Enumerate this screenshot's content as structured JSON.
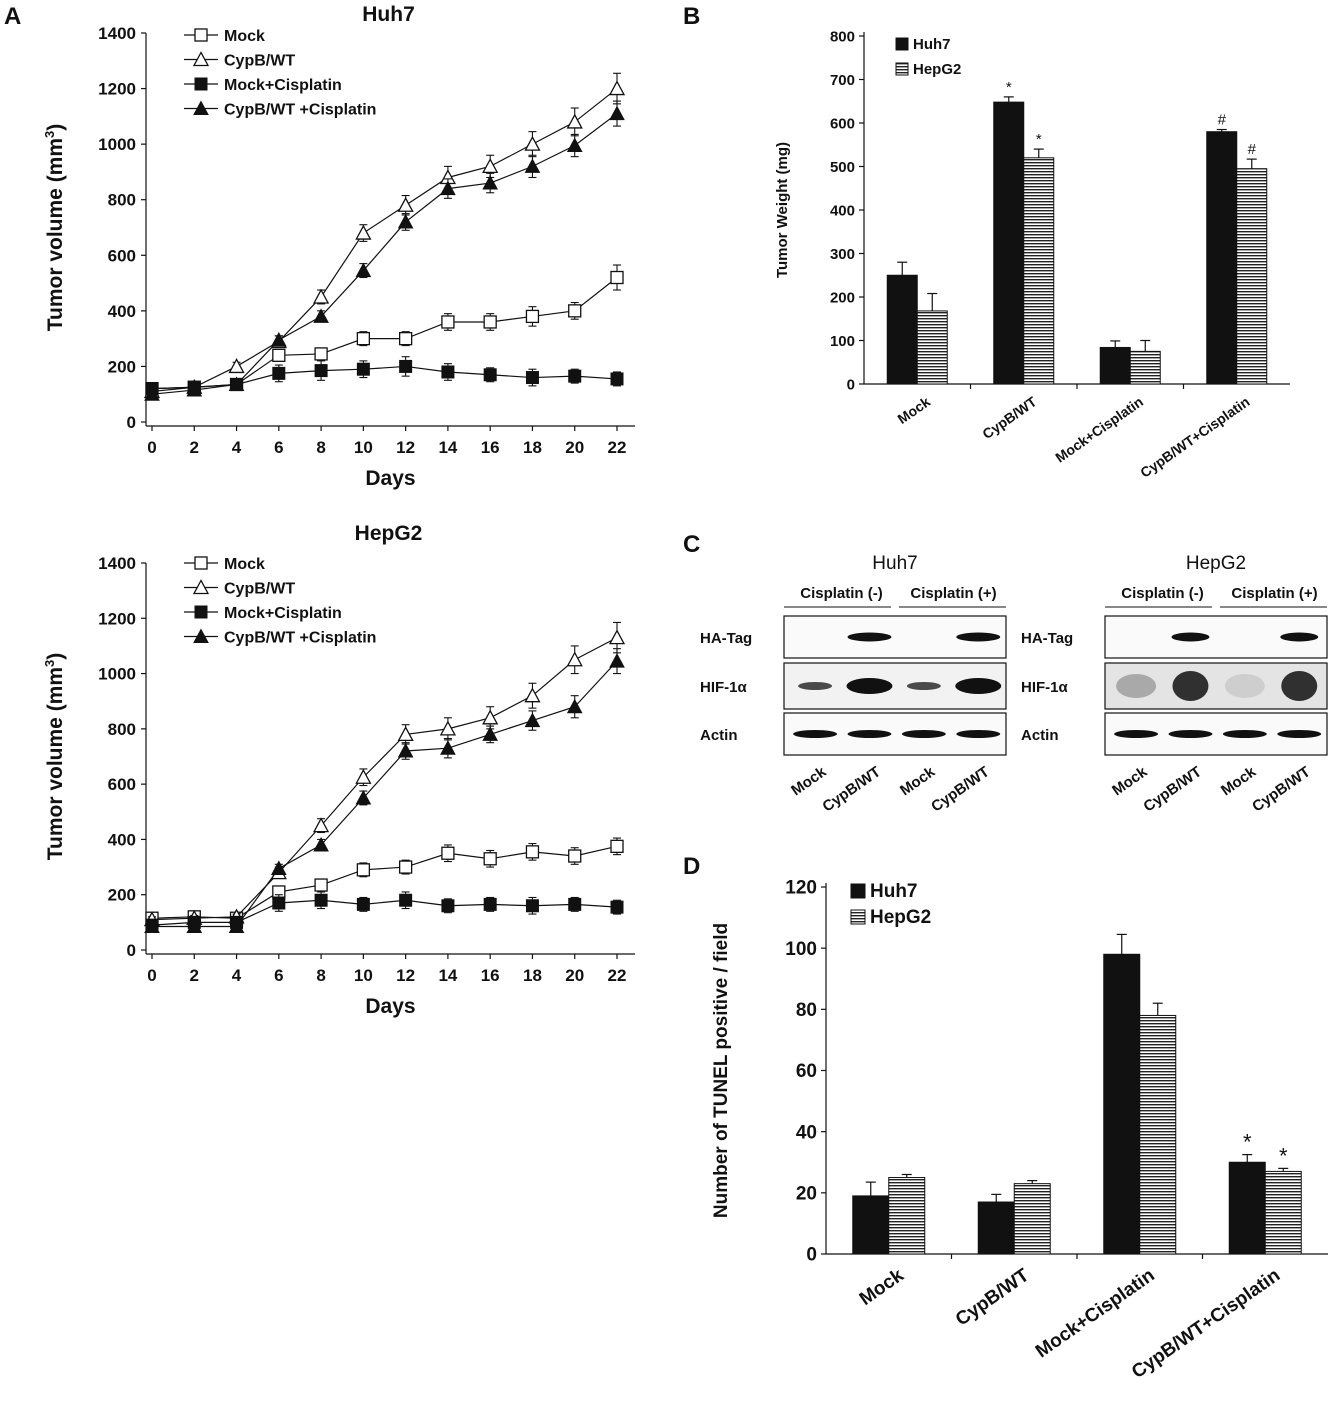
{
  "panels": {
    "A": "A",
    "B": "B",
    "C": "C",
    "D": "D"
  },
  "chart_data": [
    {
      "id": "A1",
      "type": "line",
      "title": "Huh7",
      "xlabel": "Days",
      "ylabel": "Tumor volume (mm",
      "ylabel_sup": "3",
      "ylabel_close": ")",
      "x": [
        0,
        2,
        4,
        6,
        8,
        10,
        12,
        14,
        16,
        18,
        20,
        22
      ],
      "xlim": [
        0,
        22
      ],
      "ylim": [
        0,
        1400
      ],
      "xticks": [
        0,
        2,
        4,
        6,
        8,
        10,
        12,
        14,
        16,
        18,
        20,
        22
      ],
      "yticks": [
        0,
        200,
        400,
        600,
        800,
        1000,
        1200,
        1400
      ],
      "series": [
        {
          "name": "Mock",
          "marker": "open-square",
          "values": [
            120,
            125,
            135,
            240,
            245,
            300,
            300,
            360,
            360,
            380,
            400,
            520
          ],
          "err": [
            15,
            10,
            10,
            20,
            20,
            25,
            25,
            30,
            30,
            35,
            30,
            45
          ]
        },
        {
          "name": "CypB/WT",
          "marker": "open-triangle",
          "values": [
            110,
            125,
            200,
            290,
            450,
            680,
            780,
            880,
            920,
            1000,
            1080,
            1200
          ],
          "err": [
            10,
            10,
            15,
            20,
            25,
            30,
            35,
            40,
            40,
            45,
            50,
            55
          ]
        },
        {
          "name": "Mock+Cisplatin",
          "marker": "filled-square",
          "values": [
            120,
            125,
            135,
            175,
            185,
            190,
            200,
            180,
            170,
            160,
            165,
            155
          ],
          "err": [
            15,
            10,
            10,
            30,
            35,
            30,
            35,
            30,
            25,
            30,
            25,
            25
          ]
        },
        {
          "name": "CypB/WT +Cisplatin",
          "marker": "filled-triangle",
          "values": [
            100,
            115,
            135,
            295,
            380,
            545,
            720,
            840,
            860,
            920,
            995,
            1110
          ],
          "err": [
            10,
            10,
            10,
            15,
            20,
            25,
            30,
            35,
            35,
            40,
            40,
            45
          ]
        }
      ]
    },
    {
      "id": "A2",
      "type": "line",
      "title": "HepG2",
      "xlabel": "Days",
      "ylabel": "Tumor volume (mm",
      "ylabel_sup": "3",
      "ylabel_close": ")",
      "x": [
        0,
        2,
        4,
        6,
        8,
        10,
        12,
        14,
        16,
        18,
        20,
        22
      ],
      "xlim": [
        0,
        22
      ],
      "ylim": [
        0,
        1400
      ],
      "xticks": [
        0,
        2,
        4,
        6,
        8,
        10,
        12,
        14,
        16,
        18,
        20,
        22
      ],
      "yticks": [
        0,
        200,
        400,
        600,
        800,
        1000,
        1200,
        1400
      ],
      "series": [
        {
          "name": "Mock",
          "marker": "open-square",
          "values": [
            115,
            120,
            115,
            210,
            235,
            290,
            300,
            350,
            330,
            355,
            340,
            375
          ],
          "err": [
            15,
            10,
            10,
            20,
            20,
            25,
            25,
            30,
            30,
            30,
            30,
            30
          ]
        },
        {
          "name": "CypB/WT",
          "marker": "open-triangle",
          "values": [
            110,
            115,
            120,
            280,
            450,
            625,
            780,
            800,
            840,
            920,
            1050,
            1130
          ],
          "err": [
            10,
            10,
            10,
            20,
            25,
            30,
            35,
            40,
            40,
            45,
            50,
            55
          ]
        },
        {
          "name": "Mock+Cisplatin",
          "marker": "filled-square",
          "values": [
            90,
            100,
            100,
            170,
            180,
            165,
            180,
            160,
            165,
            160,
            165,
            155
          ],
          "err": [
            10,
            10,
            10,
            30,
            30,
            25,
            30,
            25,
            25,
            30,
            25,
            25
          ]
        },
        {
          "name": "CypB/WT +Cisplatin",
          "marker": "filled-triangle",
          "values": [
            85,
            85,
            85,
            295,
            380,
            550,
            720,
            730,
            780,
            830,
            880,
            1045
          ],
          "err": [
            10,
            10,
            10,
            15,
            20,
            25,
            30,
            35,
            30,
            35,
            40,
            45
          ]
        }
      ]
    },
    {
      "id": "B",
      "type": "bar",
      "ylabel": "Tumor Weight (mg)",
      "categories": [
        "Mock",
        "CypB/WT",
        "Mock+Cisplatin",
        "CypB/WT+Cisplatin"
      ],
      "ylim": [
        0,
        800
      ],
      "yticks": [
        0,
        100,
        200,
        300,
        400,
        500,
        600,
        700,
        800
      ],
      "series": [
        {
          "name": "Huh7",
          "style": "solid",
          "values": [
            250,
            648,
            84,
            580
          ],
          "err": [
            30,
            12,
            15,
            5
          ],
          "marks": [
            "",
            "*",
            "",
            "#"
          ]
        },
        {
          "name": "HepG2",
          "style": "hatched",
          "values": [
            168,
            520,
            75,
            495
          ],
          "err": [
            40,
            20,
            25,
            22
          ],
          "marks": [
            "",
            "*",
            "",
            "#"
          ]
        }
      ]
    },
    {
      "id": "D",
      "type": "bar",
      "ylabel": "Number of TUNEL positive / field",
      "categories": [
        "Mock",
        "CypB/WT",
        "Mock+Cisplatin",
        "CypB/WT+Cisplatin"
      ],
      "ylim": [
        0,
        120
      ],
      "yticks": [
        0,
        20,
        40,
        60,
        80,
        100,
        120
      ],
      "series": [
        {
          "name": "Huh7",
          "style": "solid",
          "values": [
            19,
            17,
            98,
            30
          ],
          "err": [
            4.5,
            2.5,
            6.5,
            2.5
          ],
          "marks": [
            "",
            "",
            "",
            "*"
          ]
        },
        {
          "name": "HepG2",
          "style": "hatched",
          "values": [
            25,
            23,
            78,
            27
          ],
          "err": [
            1,
            1,
            4,
            1
          ],
          "marks": [
            "",
            "",
            "",
            "*"
          ]
        }
      ]
    }
  ],
  "western": {
    "blots": [
      {
        "title": "Huh7",
        "cond_neg": "Cisplatin (-)",
        "cond_pos": "Cisplatin (+)",
        "rows": [
          "HA-Tag",
          "HIF-1α",
          "Actin"
        ],
        "lanes": [
          "Mock",
          "CypB/WT",
          "Mock",
          "CypB/WT"
        ]
      },
      {
        "title": "HepG2",
        "cond_neg": "Cisplatin (-)",
        "cond_pos": "Cisplatin (+)",
        "rows": [
          "HA-Tag",
          "HIF-1α",
          "Actin"
        ],
        "lanes": [
          "Mock",
          "CypB/WT",
          "Mock",
          "CypB/WT"
        ]
      }
    ]
  }
}
